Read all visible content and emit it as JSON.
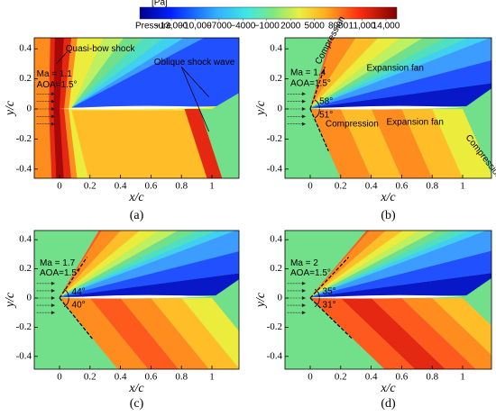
{
  "colorbar": {
    "unit": "[Pa]",
    "label": "Pressure",
    "ticks": [
      {
        "value": -13000,
        "label": "−13,000"
      },
      {
        "value": -10000,
        "label": "−10,000"
      },
      {
        "value": -7000,
        "label": "−7000"
      },
      {
        "value": -4000,
        "label": "−4000"
      },
      {
        "value": -1000,
        "label": "−1000"
      },
      2000,
      5000,
      8000,
      {
        "value": 11000,
        "label": "11,000"
      },
      {
        "value": 14000,
        "label": "14,000"
      }
    ]
  },
  "axes": {
    "xlabel": "x/c",
    "ylabel": "y/c",
    "xticks": [
      0,
      0.2,
      0.4,
      0.6,
      0.8,
      1
    ],
    "yticks": [
      0.4,
      0.2,
      0,
      -0.2,
      -0.4
    ]
  },
  "panels": [
    {
      "label": "(a)",
      "annotations": [
        "Quasi-bow shock",
        "Oblique shock wave",
        "Ma = 1.1",
        "AOA=1.5°"
      ]
    },
    {
      "label": "(b)",
      "annotations": [
        "Ma = 1.4",
        "AOA=1.5°",
        "Compression",
        "Expansion fan",
        "58°",
        "51°",
        "Compression",
        "Expansion fan",
        "Compression"
      ]
    },
    {
      "label": "(c)",
      "annotations": [
        "Ma = 1.7",
        "AOA=1.5°",
        "44°",
        "40°"
      ]
    },
    {
      "label": "(d)",
      "annotations": [
        "Ma = 2",
        "AOA=1.5°",
        "35°",
        "31°"
      ]
    }
  ]
}
